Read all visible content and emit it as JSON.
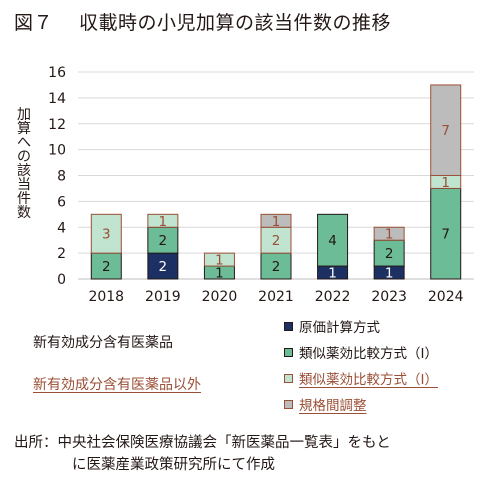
{
  "title": {
    "figure_no": "図７",
    "text": "収載時の小児加算の該当件数の推移"
  },
  "category_labels": {
    "new": "新有効成分含有医薬品",
    "other": "新有効成分含有医薬品以外"
  },
  "source": {
    "line1": "出所：中央社会保険医療協議会「新医薬品一覧表」をもと",
    "line2": "に医薬産業政策研究所にて作成"
  },
  "colors": {
    "genka": "#1c3064",
    "ruiji_new": "#6dbc98",
    "ruiji_other": "#c0e4d0",
    "kikaku": "#bdbcbc",
    "border_new": "#231815",
    "border_other": "#9a4f36",
    "grid": "#d9d9d9"
  },
  "chart_data": {
    "type": "bar",
    "stacked": true,
    "categories": [
      "2018",
      "2019",
      "2020",
      "2021",
      "2022",
      "2023",
      "2024"
    ],
    "ylabel": "加算への該当件数",
    "ylim": [
      0,
      16
    ],
    "yticks": [
      0,
      2,
      4,
      6,
      8,
      10,
      12,
      14,
      16
    ],
    "grid": true,
    "legend_position": "bottom-right",
    "series": [
      {
        "name": "原価計算方式",
        "group": "new",
        "color_key": "genka",
        "label_color": "#ffffff",
        "values": [
          0,
          2,
          0,
          0,
          1,
          1,
          0
        ]
      },
      {
        "name": "類似薬効比較方式（Ⅰ）",
        "group": "new",
        "color_key": "ruiji_new",
        "label_color": "#231815",
        "values": [
          2,
          2,
          1,
          2,
          4,
          2,
          7
        ]
      },
      {
        "name": "類似薬効比較方式（Ⅰ）",
        "group": "other",
        "color_key": "ruiji_other",
        "label_color": "#9a4f36",
        "values": [
          3,
          1,
          1,
          2,
          0,
          0,
          1
        ]
      },
      {
        "name": "規格間調整",
        "group": "other",
        "color_key": "kikaku",
        "label_color": "#9a4f36",
        "values": [
          0,
          0,
          0,
          1,
          0,
          1,
          7
        ]
      }
    ]
  }
}
